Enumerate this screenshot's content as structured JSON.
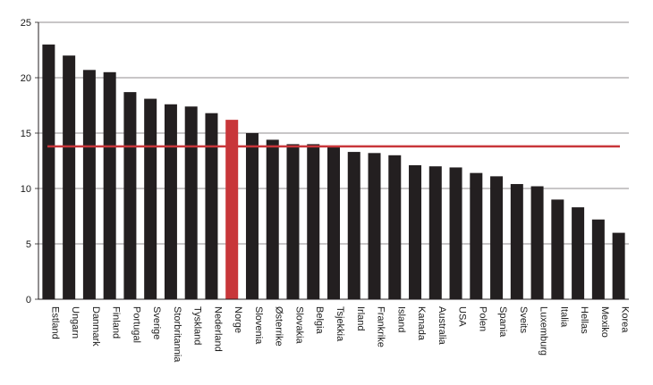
{
  "chart_data": {
    "type": "bar",
    "title": "",
    "xlabel": "",
    "ylabel": "",
    "ylim": [
      0,
      25
    ],
    "yticks": [
      0,
      5,
      10,
      15,
      20,
      25
    ],
    "grid": "horizontal",
    "legend": "none",
    "categories": [
      "Estland",
      "Ungarn",
      "Danmark",
      "Finland",
      "Portugal",
      "Sverige",
      "Storbritannia",
      "Tyskland",
      "Nederland",
      "Norge",
      "Slovenia",
      "Østerrike",
      "Slovakia",
      "Belgia",
      "Tsjekkia",
      "Irland",
      "Frankrike",
      "Island",
      "Kanada",
      "Australia",
      "USA",
      "Polen",
      "Spania",
      "Sveits",
      "Luxemburg",
      "Italia",
      "Hellas",
      "Mexiko",
      "Korea"
    ],
    "values": [
      23.0,
      22.0,
      20.7,
      20.5,
      18.7,
      18.1,
      17.6,
      17.4,
      16.8,
      16.2,
      15.0,
      14.4,
      14.0,
      14.0,
      13.8,
      13.3,
      13.2,
      13.0,
      12.1,
      12.0,
      11.9,
      11.4,
      11.1,
      10.4,
      10.2,
      9.0,
      8.3,
      7.2,
      6.0
    ],
    "highlight_category": "Norge",
    "reference_line": 13.8,
    "colors": {
      "bar": "#231f20",
      "highlight": "#c8363a",
      "reference_line": "#c8363a",
      "grid": "#231f20",
      "axis": "#231f20"
    }
  }
}
